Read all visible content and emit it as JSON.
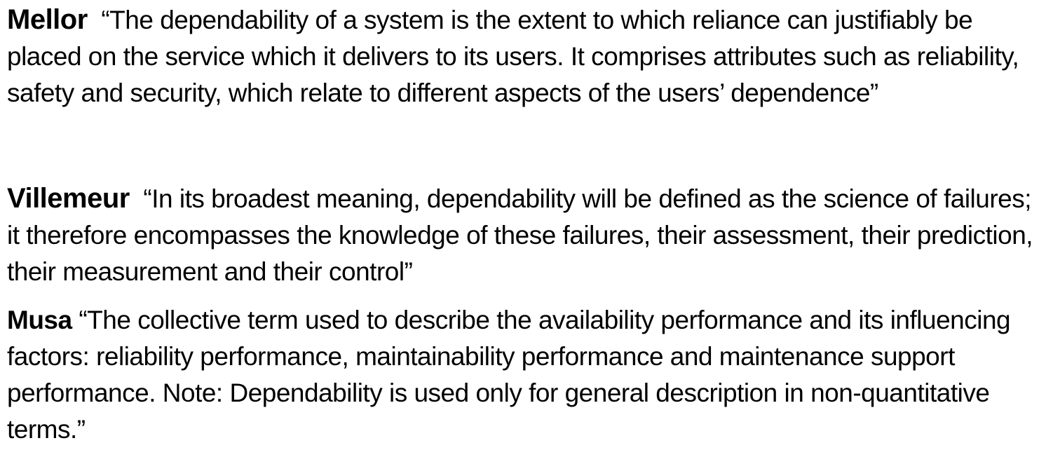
{
  "definitions": [
    {
      "author": "Mellor",
      "quote": "“The dependability of a system is the extent to which reliance can justifiably be placed on the service which it delivers to its users. It comprises attributes such as reliability, safety and security, which relate to different aspects of the users’ dependence”"
    },
    {
      "author": "Villemeur",
      "quote": "“In its broadest meaning, dependability will be defined as the science of failures; it therefore encompasses the knowledge of these failures, their assessment, their prediction, their measurement and their control”"
    },
    {
      "author": "Musa",
      "quote": "“The collective term used to describe the availability performance and its influencing factors: reliability performance, maintainability performance and maintenance support performance. Note: Dependability is used only for general description in non-quantitative terms.”"
    }
  ]
}
